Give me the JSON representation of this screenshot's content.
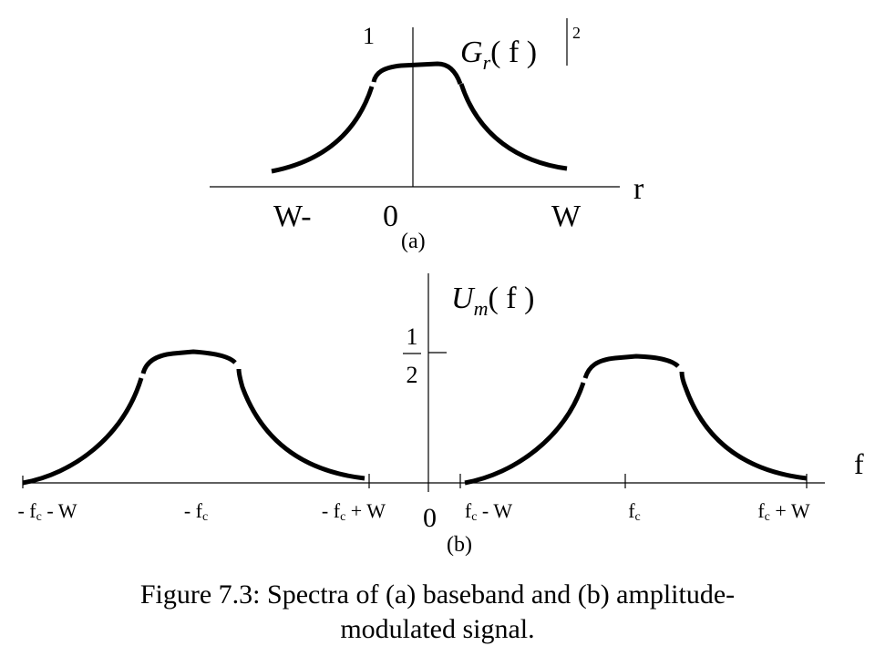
{
  "panel_a": {
    "y_tick": "1",
    "formula": {
      "symbol": "G",
      "sub": "r",
      "arg": "( f )",
      "power": "2"
    },
    "axis_label": "r",
    "x_labels": [
      "W-",
      "0",
      "W"
    ],
    "caption": "(a)"
  },
  "panel_b": {
    "formula": {
      "symbol": "U",
      "sub": "m",
      "arg": "( f )"
    },
    "y_tick": {
      "numerator": "1",
      "denominator": "2"
    },
    "axis_label": "f",
    "origin": "0",
    "x_labels": [
      {
        "main": "- f",
        "sub": "c",
        "tail": " - W"
      },
      {
        "main": "- f",
        "sub": "c"
      },
      {
        "main": "- f",
        "sub": "c",
        "tail": " + W"
      },
      {
        "main": "f",
        "sub": "c",
        "tail": " - W"
      },
      {
        "main": "f",
        "sub": "c"
      },
      {
        "main": "f",
        "sub": "c",
        "tail": " + W"
      }
    ],
    "caption": "(b)"
  },
  "figure_caption": [
    "Figure 7.3: Spectra of (a) baseband and (b) amplitude-",
    "modulated signal."
  ]
}
